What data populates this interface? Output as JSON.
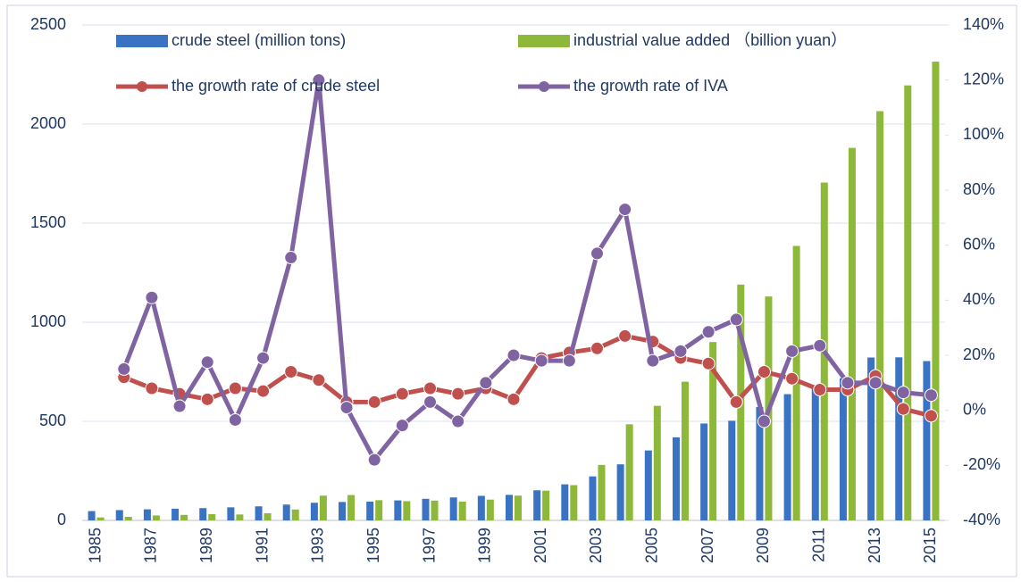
{
  "chart_data": {
    "type": "bar_line",
    "categories": [
      "1985",
      null,
      "1987",
      null,
      "1989",
      null,
      "1991",
      null,
      "1993",
      null,
      "1995",
      null,
      "1997",
      null,
      "1999",
      null,
      "2001",
      null,
      "2003",
      null,
      "2005",
      null,
      "2007",
      null,
      "2009",
      null,
      "2011",
      null,
      "2013",
      null,
      "2015"
    ],
    "series": [
      {
        "name": "crude steel (million tons)",
        "type": "bar",
        "color": "#3b73c4",
        "values": [
          47,
          52,
          56,
          59,
          62,
          66,
          71,
          80,
          89,
          93,
          95,
          101,
          109,
          116,
          124,
          129,
          152,
          182,
          222,
          283,
          353,
          419,
          489,
          503,
          572,
          637,
          683,
          717,
          822,
          823,
          804
        ]
      },
      {
        "name": "industrial value added （billion yuan）",
        "type": "bar",
        "color": "#8db83a",
        "values": [
          15,
          18,
          25,
          28,
          32,
          30,
          36,
          55,
          125,
          128,
          102,
          97,
          100,
          95,
          105,
          125,
          150,
          178,
          280,
          485,
          578,
          700,
          900,
          1190,
          1130,
          1385,
          1705,
          1880,
          2065,
          2195,
          2315
        ]
      },
      {
        "name": "the growth rate of crude steel",
        "type": "line",
        "axis": "y2",
        "color": "#c0504d",
        "values": [
          null,
          12,
          8,
          6,
          4,
          8,
          7,
          14,
          11,
          3,
          3,
          6,
          8,
          6,
          8,
          4,
          19,
          21,
          22.5,
          27,
          25,
          19,
          17,
          3,
          14,
          11.5,
          7.5,
          7.5,
          12.5,
          0.5,
          -2
        ]
      },
      {
        "name": "the growth rate of IVA",
        "type": "line",
        "axis": "y2",
        "color": "#8064a2",
        "values": [
          null,
          15,
          41,
          1.5,
          17.5,
          -3.5,
          19,
          55.5,
          120,
          1,
          -18,
          -5.5,
          3,
          -4,
          10,
          20,
          18,
          18,
          57,
          73,
          18,
          21.5,
          28.5,
          33,
          -4,
          21.5,
          23.5,
          10,
          10,
          6.5,
          5.5
        ]
      }
    ],
    "ylim": [
      0,
      2500
    ],
    "yticks": [
      0,
      500,
      1000,
      1500,
      2000,
      2500
    ],
    "y2lim": [
      -40,
      140
    ],
    "y2ticks": [
      {
        "value": -40,
        "label": "-40%"
      },
      {
        "value": -20,
        "label": "-20%"
      },
      {
        "value": 0,
        "label": "0%"
      },
      {
        "value": 20,
        "label": "20%"
      },
      {
        "value": 40,
        "label": "40%"
      },
      {
        "value": 60,
        "label": "60%"
      },
      {
        "value": 80,
        "label": "80%"
      },
      {
        "value": 100,
        "label": "100%"
      },
      {
        "value": 120,
        "label": "120%"
      },
      {
        "value": 140,
        "label": "140%"
      }
    ],
    "grid": true,
    "legend": "top"
  }
}
